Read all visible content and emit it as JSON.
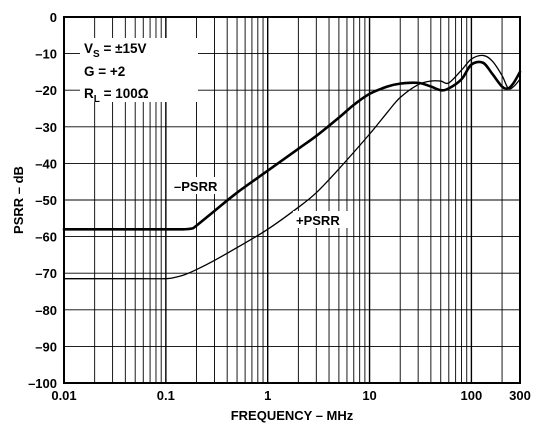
{
  "chart_data": {
    "type": "line",
    "title": "",
    "xlabel": "FREQUENCY – MHz",
    "ylabel": "PSRR – dB",
    "xscale": "log",
    "xlim": [
      0.01,
      300
    ],
    "ylim": [
      -100,
      0
    ],
    "grid": true,
    "x_ticks": [
      0.01,
      0.1,
      1,
      10,
      100,
      300
    ],
    "x_tick_labels": [
      "0.01",
      "0.1",
      "1",
      "10",
      "100",
      "300"
    ],
    "y_ticks": [
      0,
      -10,
      -20,
      -30,
      -40,
      -50,
      -60,
      -70,
      -80,
      -90,
      -100
    ],
    "y_tick_labels": [
      "0",
      "–10",
      "–20",
      "–30",
      "–40",
      "–50",
      "–60",
      "–70",
      "–80",
      "–90",
      "–100"
    ],
    "conditions": {
      "vs": {
        "main": "V",
        "sub": "S",
        "rest": " = ±15V"
      },
      "gain": "G = +2",
      "rl": {
        "main": "R",
        "sub": "L",
        "rest": " = 100Ω"
      }
    },
    "series": [
      {
        "name": "–PSRR",
        "line_weight": "thick",
        "x": [
          0.01,
          0.05,
          0.1,
          0.15,
          0.18,
          0.2,
          0.3,
          0.5,
          1,
          2,
          3,
          5,
          7,
          10,
          15,
          20,
          30,
          40,
          50,
          60,
          80,
          100,
          130,
          160,
          200,
          230,
          260,
          300
        ],
        "y": [
          -58,
          -58,
          -58,
          -58,
          -57.8,
          -57,
          -53,
          -48,
          -42,
          -36,
          -32.5,
          -27.5,
          -24,
          -21,
          -19,
          -18.2,
          -18,
          -19,
          -20,
          -19.5,
          -17,
          -13,
          -12.5,
          -15.5,
          -19,
          -19.5,
          -18,
          -15
        ]
      },
      {
        "name": "+PSRR",
        "line_weight": "thin",
        "x": [
          0.01,
          0.05,
          0.1,
          0.12,
          0.15,
          0.2,
          0.3,
          0.5,
          1,
          2,
          3,
          5,
          10,
          15,
          20,
          30,
          40,
          50,
          60,
          80,
          100,
          130,
          160,
          200,
          230,
          260,
          300
        ],
        "y": [
          -71.5,
          -71.5,
          -71.5,
          -71.2,
          -70.5,
          -69,
          -66.5,
          -63,
          -58,
          -52,
          -48,
          -41.5,
          -32,
          -26,
          -22,
          -18.5,
          -17.5,
          -17.5,
          -18,
          -14.5,
          -11.5,
          -10.5,
          -12,
          -16,
          -19.5,
          -19,
          -17
        ]
      }
    ],
    "annotations": [
      {
        "text": "–PSRR",
        "series": "–PSRR"
      },
      {
        "text": "+PSRR",
        "series": "+PSRR"
      }
    ]
  }
}
